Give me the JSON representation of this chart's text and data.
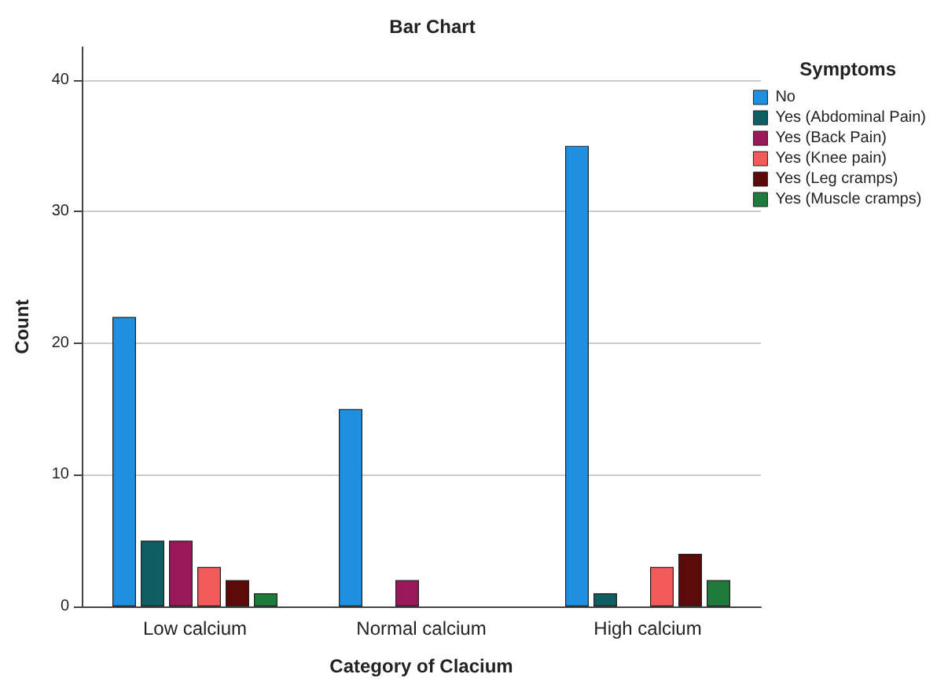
{
  "chart_data": {
    "type": "bar",
    "title": "Bar Chart",
    "xlabel": "Category of Clacium",
    "ylabel": "Count",
    "legend_title": "Symptoms",
    "categories": [
      "Low calcium",
      "Normal calcium",
      "High calcium"
    ],
    "series": [
      {
        "name": "No",
        "color": "#1f8fe0",
        "values": [
          22,
          15,
          35
        ]
      },
      {
        "name": "Yes (Abdominal Pain)",
        "color": "#0e5e64",
        "values": [
          5,
          null,
          1
        ]
      },
      {
        "name": "Yes (Back Pain)",
        "color": "#99195a",
        "values": [
          5,
          2,
          null
        ]
      },
      {
        "name": "Yes (Knee pain)",
        "color": "#f35b5b",
        "values": [
          3,
          null,
          3
        ]
      },
      {
        "name": "Yes (Leg cramps)",
        "color": "#5c0a0a",
        "values": [
          2,
          null,
          4
        ]
      },
      {
        "name": "Yes (Muscle cramps)",
        "color": "#1e7b3c",
        "values": [
          1,
          null,
          2
        ]
      }
    ],
    "ylim": [
      0,
      42.5
    ],
    "yticks": [
      0,
      10,
      20,
      30,
      40
    ],
    "grid": "y",
    "legend": "right"
  }
}
